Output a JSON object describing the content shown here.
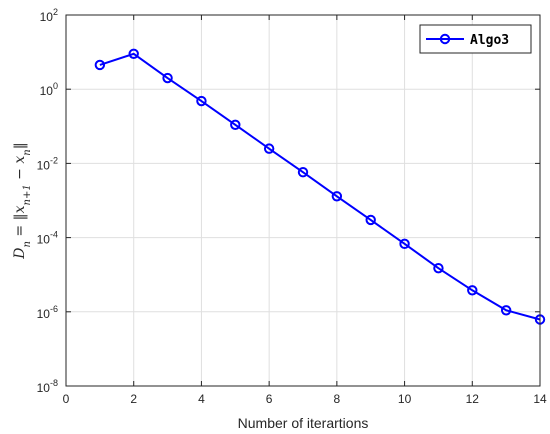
{
  "chart_data": {
    "type": "line",
    "xlabel": "Number of iterartions",
    "ylabel": "D_n = ||x_{n+1} - x_n||",
    "ylabel_parts": {
      "d": "D",
      "n": "n",
      "eq": " = ‖",
      "x": "x",
      "sub1": "n+1",
      "minus": " − ",
      "x2": "x",
      "sub2": "n",
      "close": "‖"
    },
    "yscale": "log",
    "xlim": [
      0,
      14
    ],
    "ylim": [
      1e-08,
      100
    ],
    "xticks": [
      "0",
      "2",
      "4",
      "6",
      "8",
      "10",
      "12",
      "14"
    ],
    "xtick_values": [
      0,
      2,
      4,
      6,
      8,
      10,
      12,
      14
    ],
    "yticks": [
      {
        "base": "10",
        "exp": "-8",
        "value": 1e-08
      },
      {
        "base": "10",
        "exp": "-6",
        "value": 1e-06
      },
      {
        "base": "10",
        "exp": "-4",
        "value": 0.0001
      },
      {
        "base": "10",
        "exp": "-2",
        "value": 0.01
      },
      {
        "base": "10",
        "exp": "0",
        "value": 1
      },
      {
        "base": "10",
        "exp": "2",
        "value": 100
      }
    ],
    "grid": true,
    "legend_position": "top-right",
    "series": [
      {
        "name": "Algo3",
        "color": "#0000ff",
        "marker": "circle",
        "x": [
          1,
          2,
          3,
          4,
          5,
          6,
          7,
          8,
          9,
          10,
          11,
          12,
          13,
          14
        ],
        "y": [
          4.5,
          9.0,
          2.0,
          0.48,
          0.11,
          0.025,
          0.0058,
          0.0013,
          0.0003,
          6.8e-05,
          1.5e-05,
          3.8e-06,
          1.1e-06,
          6.2e-07
        ]
      }
    ]
  }
}
